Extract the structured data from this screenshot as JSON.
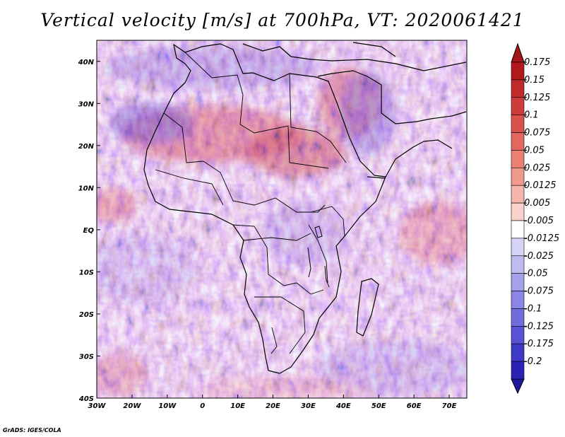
{
  "title": "Vertical velocity [m/s] at 700hPa, VT: 2020061421",
  "footer": "GrADS: IGES/COLA",
  "map": {
    "lon_range": [
      -30,
      75
    ],
    "lat_range": [
      -40,
      45
    ],
    "x_ticks": [
      {
        "value": -30,
        "label": "30W"
      },
      {
        "value": -20,
        "label": "20W"
      },
      {
        "value": -10,
        "label": "10W"
      },
      {
        "value": 0,
        "label": "0"
      },
      {
        "value": 10,
        "label": "10E"
      },
      {
        "value": 20,
        "label": "20E"
      },
      {
        "value": 30,
        "label": "30E"
      },
      {
        "value": 40,
        "label": "40E"
      },
      {
        "value": 50,
        "label": "50E"
      },
      {
        "value": 60,
        "label": "60E"
      },
      {
        "value": 70,
        "label": "70E"
      }
    ],
    "y_ticks": [
      {
        "value": 40,
        "label": "40N"
      },
      {
        "value": 30,
        "label": "30N"
      },
      {
        "value": 20,
        "label": "20N"
      },
      {
        "value": 10,
        "label": "10N"
      },
      {
        "value": 0,
        "label": "EQ"
      },
      {
        "value": -10,
        "label": "10S"
      },
      {
        "value": -20,
        "label": "20S"
      },
      {
        "value": -30,
        "label": "30S"
      },
      {
        "value": -40,
        "label": "40S"
      }
    ]
  },
  "colorbar": {
    "levels": [
      {
        "label": "0.175",
        "color": "#b2181b"
      },
      {
        "label": "0.15",
        "color": "#c02a2a"
      },
      {
        "label": "0.125",
        "color": "#cd3c3a"
      },
      {
        "label": "0.1",
        "color": "#d9524c"
      },
      {
        "label": "0.075",
        "color": "#e2685f"
      },
      {
        "label": "0.05",
        "color": "#ea8074"
      },
      {
        "label": "0.025",
        "color": "#f09a8e"
      },
      {
        "label": "0.0125",
        "color": "#f5b5ab"
      },
      {
        "label": "0.005",
        "color": "#fad2cc"
      },
      {
        "label": "-0.005",
        "color": "#ffffff"
      },
      {
        "label": "-0.0125",
        "color": "#d6d4f6"
      },
      {
        "label": "-0.025",
        "color": "#bebbf1"
      },
      {
        "label": "-0.05",
        "color": "#a4a0ea"
      },
      {
        "label": "-0.075",
        "color": "#8b86e3"
      },
      {
        "label": "-0.1",
        "color": "#716cdb"
      },
      {
        "label": "-0.125",
        "color": "#5853d2"
      },
      {
        "label": "-0.175",
        "color": "#3e39c6"
      },
      {
        "label": "-0.2",
        "color": "#2a22b5"
      }
    ],
    "top_arrow_color": "#a5161a",
    "bottom_arrow_color": "#1f189f"
  }
}
